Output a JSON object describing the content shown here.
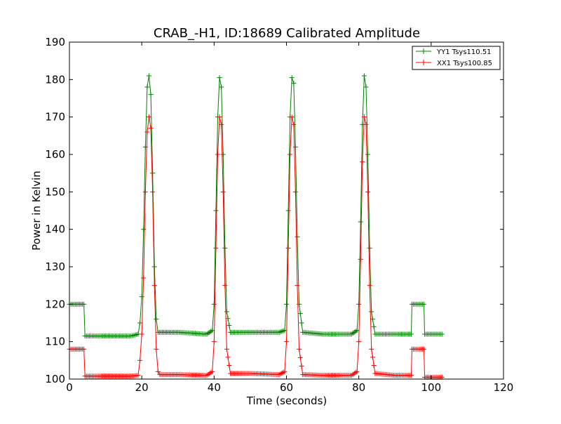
{
  "chart_data": {
    "type": "line",
    "title": "CRAB_-H1, ID:18689 Calibrated Amplitude",
    "xlabel": "Time (seconds)",
    "ylabel": "Power in Kelvin",
    "xlim": [
      0,
      120
    ],
    "ylim": [
      100,
      190
    ],
    "xticks": [
      0,
      20,
      40,
      60,
      80,
      100,
      120
    ],
    "yticks": [
      100,
      110,
      120,
      130,
      140,
      150,
      160,
      170,
      180,
      190
    ],
    "xtick_labels": [
      "0",
      "20",
      "40",
      "60",
      "80",
      "100",
      "120"
    ],
    "ytick_labels": [
      "100",
      "110",
      "120",
      "130",
      "140",
      "150",
      "160",
      "170",
      "180",
      "190"
    ],
    "grid": false,
    "legend_position": "top-right",
    "markers": "plus",
    "series": [
      {
        "name": "YY1 Tsys110.51",
        "color": "#008000",
        "points": [
          [
            0,
            120
          ],
          [
            4,
            120
          ],
          [
            4.3,
            111.5
          ],
          [
            10,
            111.5
          ],
          [
            17,
            111.5
          ],
          [
            19,
            112
          ],
          [
            19.5,
            115
          ],
          [
            20,
            122
          ],
          [
            20.5,
            140
          ],
          [
            21,
            162
          ],
          [
            21.5,
            178
          ],
          [
            22,
            181
          ],
          [
            22.5,
            176
          ],
          [
            23,
            155
          ],
          [
            23.5,
            130
          ],
          [
            24,
            116
          ],
          [
            24.5,
            112.5
          ],
          [
            30,
            112.5
          ],
          [
            38,
            112
          ],
          [
            39.5,
            113
          ],
          [
            40,
            120
          ],
          [
            40.5,
            145
          ],
          [
            41,
            170
          ],
          [
            41.5,
            180.5
          ],
          [
            42,
            178
          ],
          [
            42.5,
            160
          ],
          [
            43,
            135
          ],
          [
            43.5,
            118
          ],
          [
            44.5,
            112.5
          ],
          [
            50,
            112.5
          ],
          [
            58,
            112.5
          ],
          [
            59.5,
            113
          ],
          [
            60,
            120
          ],
          [
            60.5,
            145
          ],
          [
            61,
            170
          ],
          [
            61.5,
            180.5
          ],
          [
            62,
            179
          ],
          [
            62.5,
            162
          ],
          [
            63,
            138
          ],
          [
            63.5,
            120
          ],
          [
            64.5,
            112.5
          ],
          [
            70,
            112
          ],
          [
            78,
            112
          ],
          [
            79.5,
            113
          ],
          [
            80,
            120
          ],
          [
            80.5,
            142
          ],
          [
            81,
            168
          ],
          [
            81.5,
            181
          ],
          [
            82,
            178
          ],
          [
            82.5,
            160
          ],
          [
            83,
            135
          ],
          [
            83.5,
            118
          ],
          [
            84.5,
            112
          ],
          [
            93,
            112
          ],
          [
            94.5,
            112
          ],
          [
            94.7,
            120
          ],
          [
            98,
            120
          ],
          [
            98.2,
            112
          ],
          [
            103,
            112
          ]
        ]
      },
      {
        "name": "XX1 Tsys100.85",
        "color": "#ff0000",
        "points": [
          [
            0,
            108
          ],
          [
            4,
            108
          ],
          [
            4.3,
            100.8
          ],
          [
            10,
            100.8
          ],
          [
            17,
            100.8
          ],
          [
            19,
            101
          ],
          [
            19.5,
            105
          ],
          [
            20,
            112
          ],
          [
            20.5,
            127
          ],
          [
            21,
            150
          ],
          [
            21.5,
            166
          ],
          [
            22,
            170
          ],
          [
            22.5,
            167
          ],
          [
            23,
            150
          ],
          [
            23.5,
            125
          ],
          [
            24,
            108
          ],
          [
            24.5,
            102
          ],
          [
            25,
            101.2
          ],
          [
            30,
            101.2
          ],
          [
            38,
            101
          ],
          [
            39.5,
            102
          ],
          [
            40,
            110
          ],
          [
            40.5,
            135
          ],
          [
            41,
            160
          ],
          [
            41.5,
            170
          ],
          [
            42,
            168
          ],
          [
            42.5,
            150
          ],
          [
            43,
            125
          ],
          [
            43.5,
            108
          ],
          [
            44.5,
            101.5
          ],
          [
            50,
            101.5
          ],
          [
            58,
            101.2
          ],
          [
            59.5,
            102
          ],
          [
            60,
            110
          ],
          [
            60.5,
            135
          ],
          [
            61,
            160
          ],
          [
            61.5,
            170
          ],
          [
            62,
            168
          ],
          [
            62.5,
            150
          ],
          [
            63,
            125
          ],
          [
            63.5,
            108
          ],
          [
            64.5,
            101.2
          ],
          [
            70,
            101
          ],
          [
            78,
            101
          ],
          [
            79.5,
            102
          ],
          [
            80,
            110
          ],
          [
            80.5,
            132
          ],
          [
            81,
            158
          ],
          [
            81.5,
            170
          ],
          [
            82,
            168
          ],
          [
            82.5,
            150
          ],
          [
            83,
            125
          ],
          [
            83.5,
            108
          ],
          [
            84.5,
            101.5
          ],
          [
            90,
            101
          ],
          [
            94.5,
            101
          ],
          [
            94.7,
            108
          ],
          [
            98,
            108
          ],
          [
            98.2,
            100.5
          ],
          [
            103,
            100.5
          ]
        ]
      }
    ]
  }
}
